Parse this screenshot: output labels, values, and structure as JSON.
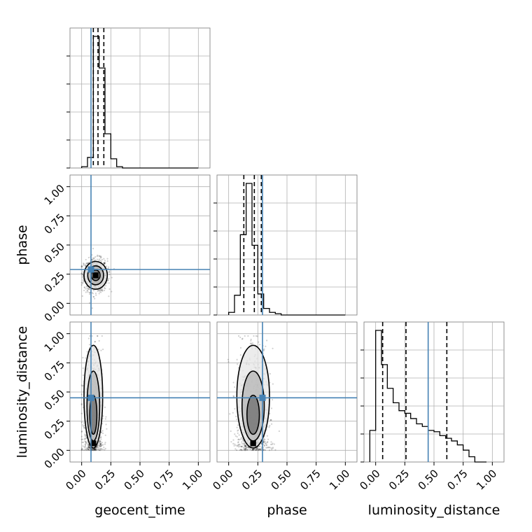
{
  "colors": {
    "truth": "#4682b4",
    "hist": "#000000",
    "grid": "#b0b0b0",
    "quantile": "#000000"
  },
  "chart_data": {
    "type": "corner",
    "parameters": [
      "geocent_time",
      "phase",
      "luminosity_distance"
    ],
    "axis_range": [
      -0.1,
      1.1
    ],
    "ticks": [
      0.0,
      0.25,
      0.5,
      0.75,
      1.0
    ],
    "tick_labels": [
      "0.00",
      "0.25",
      "0.50",
      "0.75",
      "1.00"
    ],
    "grid": true,
    "truths": {
      "geocent_time": 0.08,
      "phase": 0.29,
      "luminosity_distance": 0.45
    },
    "quantiles": {
      "geocent_time": [
        0.1,
        0.14,
        0.19
      ],
      "phase": [
        0.13,
        0.22,
        0.28
      ],
      "luminosity_distance": [
        0.06,
        0.26,
        0.61
      ]
    },
    "histograms": {
      "geocent_time": {
        "bin_width": 0.05,
        "bins_start": 0.0,
        "heights": [
          0.01,
          0.08,
          1.0,
          0.76,
          0.26,
          0.07,
          0.01,
          0.0,
          0.0,
          0.0,
          0.0,
          0.0,
          0.0,
          0.0,
          0.0,
          0.0,
          0.0,
          0.0,
          0.0,
          0.0
        ]
      },
      "phase": {
        "bin_width": 0.05,
        "bins_start": 0.0,
        "heights": [
          0.02,
          0.15,
          0.61,
          1.0,
          0.53,
          0.16,
          0.05,
          0.02,
          0.01,
          0.0,
          0.0,
          0.0,
          0.0,
          0.0,
          0.0,
          0.0,
          0.0,
          0.0,
          0.0,
          0.0
        ]
      },
      "luminosity_distance": {
        "bin_width": 0.05,
        "bins_start": -0.05,
        "heights": [
          0.24,
          1.0,
          0.74,
          0.56,
          0.45,
          0.39,
          0.37,
          0.33,
          0.29,
          0.27,
          0.24,
          0.23,
          0.2,
          0.18,
          0.16,
          0.13,
          0.09,
          0.04,
          0.0,
          0.0
        ]
      }
    },
    "panels_2d": [
      {
        "x": "geocent_time",
        "y": "phase",
        "center": [
          0.12,
          0.24
        ],
        "spread": [
          0.05,
          0.07
        ]
      },
      {
        "x": "geocent_time",
        "y": "luminosity_distance",
        "center": [
          0.1,
          0.4
        ],
        "spread": [
          0.04,
          0.28
        ]
      },
      {
        "x": "phase",
        "y": "luminosity_distance",
        "center": [
          0.21,
          0.4
        ],
        "spread": [
          0.07,
          0.28
        ]
      }
    ]
  }
}
